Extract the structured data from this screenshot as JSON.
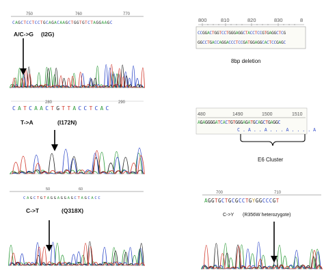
{
  "colors": {
    "A": "#2e9b3a",
    "C": "#2b46c8",
    "G": "#222222",
    "T": "#d23a2e",
    "other": "#c9a23a"
  },
  "panels": [
    {
      "id": "i2g",
      "sequence": "CAGCTCCTCCTGCAGACAAGCTGGTGTCTAGGAAGC",
      "ticks": [
        "750",
        "760",
        "770"
      ],
      "label_main": "A/C->G",
      "label_sub": "(I2G)"
    },
    {
      "id": "i172n",
      "sequence": "CATCAACTGTTACCTCAC",
      "ticks": [
        "280",
        "290"
      ],
      "label_main": "T->A",
      "label_sub": "(I172N)"
    },
    {
      "id": "q318x",
      "sequence": "CAGCTGTAGGAGGAGCTAGCACC",
      "ticks": [
        "50",
        "60"
      ],
      "label_main": "C->T",
      "label_sub": "(Q318X)"
    },
    {
      "id": "del8",
      "ticks": [
        "800",
        "810",
        "820",
        "830",
        "8"
      ],
      "seq_top": "CCGGACTGGTCCTGGGAGGCTACCTCCGTGAGGCTCG",
      "seq_bottom": "GGCCTGACCAGGACCCTCCGATGGAGGCACTCCGAGC",
      "caption": "8bp deletion"
    },
    {
      "id": "e6",
      "ticks": [
        "480",
        "1490",
        "1500",
        "1510"
      ],
      "seq_top": "AGAGGGGATCACTGTGGGAGATGCAGCTGAGGC",
      "seq_bottom": "C . A . . A . . . A . . . . A",
      "caption": "E6 Cluster"
    },
    {
      "id": "r356w",
      "sequence": "AGGTGCTGCGCCTGYGGCCCGT",
      "ticks": [
        "700",
        "710"
      ],
      "label_main": "C->Y",
      "label_sub": "(R356W heterozygote)"
    }
  ]
}
